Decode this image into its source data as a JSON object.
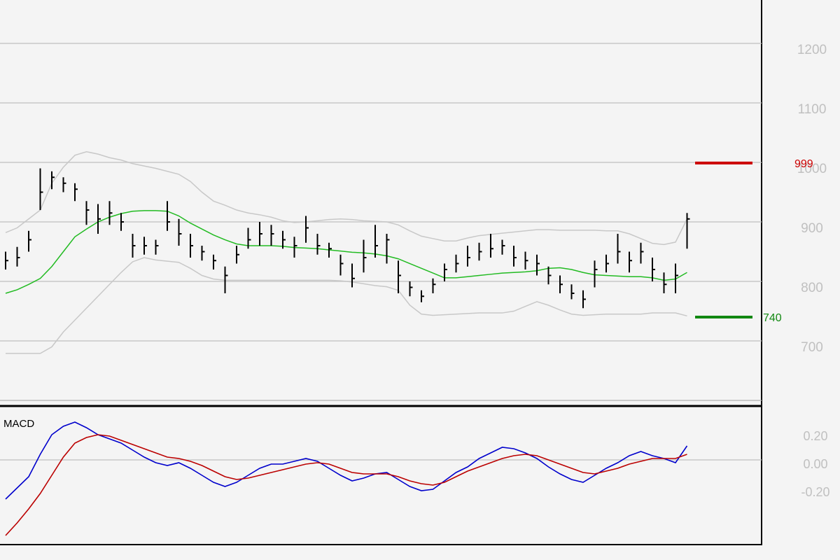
{
  "chart_data": [
    {
      "type": "ohlc",
      "ylim": [
        600,
        1273
      ],
      "yticks": [
        700,
        800,
        900,
        1000,
        1100,
        1200
      ],
      "grid": true,
      "high": [
        850,
        858,
        885,
        990,
        985,
        975,
        965,
        935,
        930,
        935,
        915,
        880,
        875,
        870,
        935,
        905,
        880,
        860,
        845,
        825,
        860,
        890,
        900,
        895,
        885,
        875,
        910,
        880,
        865,
        845,
        830,
        870,
        895,
        880,
        835,
        800,
        785,
        805,
        830,
        845,
        860,
        865,
        880,
        870,
        860,
        850,
        845,
        825,
        810,
        795,
        785,
        835,
        845,
        880,
        850,
        865,
        840,
        815,
        830,
        915
      ],
      "low": [
        820,
        825,
        850,
        920,
        955,
        950,
        935,
        895,
        880,
        895,
        885,
        840,
        845,
        845,
        885,
        860,
        840,
        835,
        820,
        780,
        830,
        855,
        860,
        860,
        855,
        840,
        865,
        845,
        840,
        810,
        790,
        815,
        840,
        830,
        780,
        775,
        765,
        780,
        800,
        815,
        825,
        835,
        840,
        845,
        825,
        820,
        810,
        795,
        780,
        770,
        755,
        790,
        815,
        830,
        815,
        830,
        800,
        780,
        780,
        855
      ],
      "close": [
        835,
        840,
        870,
        950,
        975,
        965,
        955,
        920,
        905,
        915,
        900,
        860,
        860,
        860,
        900,
        880,
        860,
        850,
        835,
        810,
        845,
        870,
        880,
        880,
        870,
        860,
        890,
        860,
        855,
        830,
        805,
        840,
        860,
        870,
        810,
        790,
        775,
        795,
        820,
        830,
        840,
        850,
        855,
        860,
        840,
        835,
        830,
        810,
        795,
        780,
        770,
        820,
        830,
        850,
        835,
        850,
        820,
        795,
        810,
        905
      ],
      "bar_color": "#000000",
      "lines": [
        {
          "color": "#22bb22",
          "values": [
            780,
            786,
            795,
            805,
            825,
            850,
            875,
            888,
            900,
            908,
            914,
            918,
            919,
            919,
            918,
            910,
            898,
            888,
            878,
            870,
            863,
            860,
            860,
            860,
            859,
            857,
            856,
            855,
            853,
            851,
            849,
            848,
            846,
            843,
            838,
            830,
            822,
            814,
            806,
            806,
            808,
            810,
            812,
            814,
            815,
            816,
            818,
            822,
            823,
            820,
            815,
            811,
            810,
            809,
            808,
            808,
            806,
            802,
            804,
            815
          ]
        },
        {
          "color": "#c8c8c8",
          "values": [
            882,
            890,
            905,
            920,
            965,
            992,
            1012,
            1018,
            1014,
            1008,
            1004,
            998,
            994,
            990,
            985,
            980,
            968,
            950,
            935,
            928,
            920,
            915,
            912,
            908,
            902,
            899,
            900,
            902,
            904,
            905,
            904,
            902,
            901,
            900,
            895,
            885,
            876,
            872,
            868,
            868,
            873,
            877,
            879,
            881,
            883,
            885,
            887,
            887,
            886,
            886,
            886,
            886,
            885,
            885,
            880,
            872,
            864,
            862,
            866,
            905
          ]
        },
        {
          "color": "#c8c8c8",
          "values": [
            679,
            679,
            679,
            679,
            690,
            715,
            735,
            755,
            775,
            795,
            815,
            833,
            840,
            836,
            834,
            832,
            822,
            810,
            804,
            802,
            802,
            802,
            802,
            802,
            802,
            802,
            802,
            802,
            802,
            801,
            799,
            796,
            793,
            791,
            785,
            760,
            745,
            743,
            744,
            745,
            746,
            747,
            747,
            747,
            750,
            758,
            766,
            760,
            752,
            745,
            743,
            744,
            745,
            745,
            745,
            745,
            747,
            747,
            747,
            742
          ]
        }
      ],
      "levels": [
        {
          "value": 999,
          "color": "#cc0000"
        },
        {
          "value": 740,
          "color": "#118811"
        }
      ]
    },
    {
      "type": "line",
      "title": "MACD",
      "ylim": [
        -0.605,
        0.36
      ],
      "yticks": [
        {
          "value": 0.2,
          "label": "0.20"
        },
        {
          "value": 0,
          "label": "0.00"
        },
        {
          "value": -0.2,
          "label": "-0.20"
        }
      ],
      "grid_at": [
        0
      ],
      "series": [
        {
          "color": "#0000cc",
          "values": [
            -0.28,
            -0.2,
            -0.12,
            0.04,
            0.18,
            0.24,
            0.27,
            0.23,
            0.18,
            0.15,
            0.12,
            0.07,
            0.02,
            -0.02,
            -0.04,
            -0.02,
            -0.06,
            -0.11,
            -0.16,
            -0.19,
            -0.16,
            -0.11,
            -0.06,
            -0.03,
            -0.03,
            -0.01,
            0.01,
            -0.01,
            -0.06,
            -0.11,
            -0.15,
            -0.13,
            -0.1,
            -0.09,
            -0.14,
            -0.19,
            -0.22,
            -0.21,
            -0.15,
            -0.09,
            -0.05,
            0.01,
            0.05,
            0.09,
            0.08,
            0.05,
            0.01,
            -0.05,
            -0.1,
            -0.14,
            -0.16,
            -0.11,
            -0.06,
            -0.02,
            0.03,
            0.06,
            0.03,
            0.01,
            -0.02,
            0.1
          ]
        },
        {
          "color": "#bb0000",
          "values": [
            -0.54,
            -0.45,
            -0.35,
            -0.24,
            -0.11,
            0.02,
            0.12,
            0.16,
            0.18,
            0.17,
            0.14,
            0.11,
            0.08,
            0.05,
            0.02,
            0.01,
            -0.01,
            -0.04,
            -0.08,
            -0.12,
            -0.14,
            -0.13,
            -0.11,
            -0.09,
            -0.07,
            -0.05,
            -0.03,
            -0.02,
            -0.03,
            -0.06,
            -0.09,
            -0.1,
            -0.1,
            -0.1,
            -0.12,
            -0.15,
            -0.17,
            -0.18,
            -0.16,
            -0.12,
            -0.08,
            -0.05,
            -0.02,
            0.01,
            0.03,
            0.04,
            0.03,
            0.0,
            -0.03,
            -0.06,
            -0.09,
            -0.1,
            -0.08,
            -0.06,
            -0.03,
            -0.01,
            0.01,
            0.01,
            0.01,
            0.04
          ]
        }
      ]
    }
  ]
}
